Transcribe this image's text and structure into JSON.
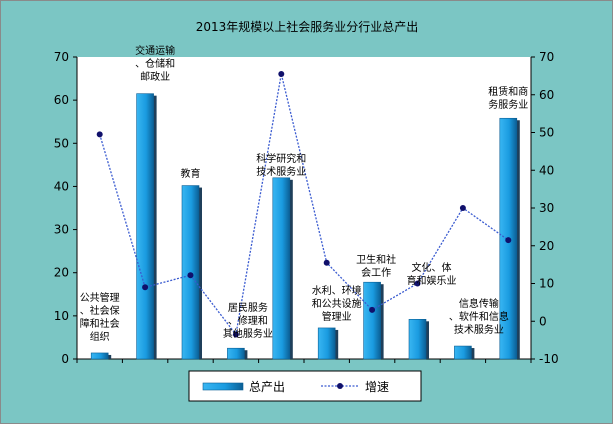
{
  "chart_data": {
    "type": "bar+line",
    "title": "2013年规模以上社会服务业分行业总产出",
    "categories": [
      "公共管理、社会保障和社会组织",
      "交通运输、仓储和邮政业",
      "教育",
      "居民服务、修理和其他服务业",
      "科学研究和技术服务业",
      "水利、环境和公共设施管理业",
      "卫生和社会工作",
      "文化、体育和娱乐业",
      "信息传输、软件和信息技术服务业",
      "租赁和商务服务业"
    ],
    "category_label_lines": [
      [
        "公共管理",
        "、社会保",
        "障和社会",
        "组织"
      ],
      [
        "交通运输",
        "、仓储和",
        "邮政业"
      ],
      [
        "教育"
      ],
      [
        "居民服务",
        "、修理和",
        "其他服务业"
      ],
      [
        "科学研究和",
        "技术服务业"
      ],
      [
        "水利、环境",
        "和公共设施",
        "管理业"
      ],
      [
        "卫生和社",
        "会工作"
      ],
      [
        "文化、体",
        "育和娱乐业"
      ],
      [
        "信息传输",
        "、软件和信息",
        "技术服务业"
      ],
      [
        "租赁和商",
        "务服务业"
      ]
    ],
    "series": [
      {
        "name": "总产出",
        "type": "bar",
        "axis": "left",
        "values": [
          1.4,
          61.5,
          40.2,
          2.5,
          42.0,
          7.2,
          17.8,
          9.2,
          3.0,
          55.8
        ]
      },
      {
        "name": "增速",
        "type": "line",
        "axis": "right",
        "values": [
          49.5,
          9.0,
          12.2,
          -3.5,
          65.5,
          15.5,
          3.0,
          10.0,
          30.0,
          21.5
        ]
      }
    ],
    "y_left": {
      "min": 0,
      "max": 70,
      "ticks": [
        0,
        10,
        20,
        30,
        40,
        50,
        60,
        70
      ]
    },
    "y_right": {
      "min": -10,
      "max": 70,
      "ticks": [
        -10,
        0,
        10,
        20,
        30,
        40,
        50,
        60,
        70
      ]
    },
    "legend": {
      "position": "bottom"
    },
    "grid": false,
    "colors": {
      "background": "#7bc6c4",
      "plot": "#ffffff",
      "bar": "#1a9be0",
      "bar_dark": "#0b5f95",
      "bar_shadow": "#1f3f5a",
      "line": "#3a5bd0",
      "marker": "#10106b"
    }
  }
}
